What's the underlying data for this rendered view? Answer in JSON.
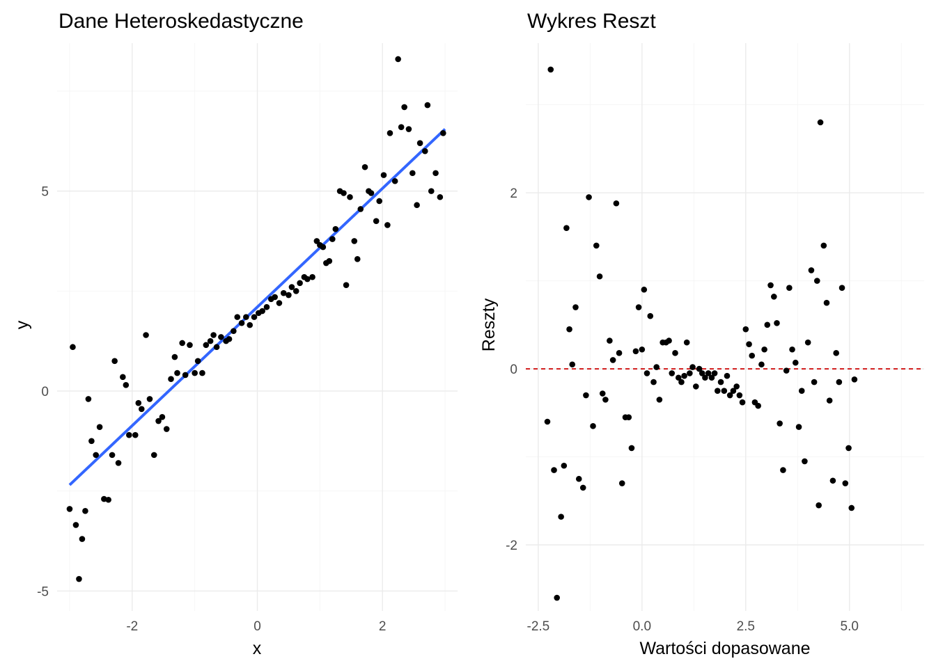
{
  "chart_data": [
    {
      "type": "scatter",
      "title": "Dane Heteroskedastyczne",
      "xlabel": "x",
      "ylabel": "y",
      "xlim": [
        -3.2,
        3.2
      ],
      "ylim": [
        -5.5,
        8.7
      ],
      "xticks": [
        -2,
        0,
        2
      ],
      "yticks": [
        -5,
        0,
        5
      ],
      "xtick_labels": [
        "-2",
        "0",
        "2"
      ],
      "ytick_labels": [
        "-5",
        "0",
        "5"
      ],
      "grid": true,
      "colors": {
        "points": "#000000",
        "fit_line": "#3366ff"
      },
      "fit_line": {
        "x": [
          -3.0,
          3.0
        ],
        "y": [
          -2.35,
          6.55
        ]
      },
      "points": [
        [
          -3.0,
          -2.95
        ],
        [
          -2.95,
          1.1
        ],
        [
          -2.9,
          -3.35
        ],
        [
          -2.85,
          -4.7
        ],
        [
          -2.8,
          -3.7
        ],
        [
          -2.75,
          -3.0
        ],
        [
          -2.7,
          -0.2
        ],
        [
          -2.65,
          -1.25
        ],
        [
          -2.58,
          -1.6
        ],
        [
          -2.52,
          -0.9
        ],
        [
          -2.45,
          -2.7
        ],
        [
          -2.38,
          -2.72
        ],
        [
          -2.32,
          -1.6
        ],
        [
          -2.28,
          0.75
        ],
        [
          -2.22,
          -1.8
        ],
        [
          -2.15,
          0.35
        ],
        [
          -2.1,
          0.15
        ],
        [
          -2.05,
          -1.1
        ],
        [
          -1.95,
          -1.1
        ],
        [
          -1.9,
          -0.3
        ],
        [
          -1.85,
          -0.45
        ],
        [
          -1.78,
          1.4
        ],
        [
          -1.72,
          -0.2
        ],
        [
          -1.65,
          -1.6
        ],
        [
          -1.58,
          -0.75
        ],
        [
          -1.52,
          -0.65
        ],
        [
          -1.45,
          -0.95
        ],
        [
          -1.38,
          0.3
        ],
        [
          -1.32,
          0.85
        ],
        [
          -1.28,
          0.45
        ],
        [
          -1.2,
          1.2
        ],
        [
          -1.15,
          0.4
        ],
        [
          -1.08,
          1.15
        ],
        [
          -1.0,
          0.45
        ],
        [
          -0.95,
          0.75
        ],
        [
          -0.88,
          0.45
        ],
        [
          -0.82,
          1.15
        ],
        [
          -0.75,
          1.25
        ],
        [
          -0.7,
          1.4
        ],
        [
          -0.65,
          1.1
        ],
        [
          -0.58,
          1.35
        ],
        [
          -0.5,
          1.25
        ],
        [
          -0.45,
          1.3
        ],
        [
          -0.38,
          1.5
        ],
        [
          -0.32,
          1.85
        ],
        [
          -0.25,
          1.7
        ],
        [
          -0.18,
          1.85
        ],
        [
          -0.12,
          1.65
        ],
        [
          -0.05,
          1.85
        ],
        [
          0.02,
          1.95
        ],
        [
          0.08,
          2.0
        ],
        [
          0.15,
          2.1
        ],
        [
          0.22,
          2.3
        ],
        [
          0.28,
          2.35
        ],
        [
          0.35,
          2.2
        ],
        [
          0.42,
          2.45
        ],
        [
          0.5,
          2.4
        ],
        [
          0.55,
          2.6
        ],
        [
          0.62,
          2.5
        ],
        [
          0.68,
          2.7
        ],
        [
          0.75,
          2.85
        ],
        [
          0.8,
          2.8
        ],
        [
          0.88,
          2.85
        ],
        [
          0.95,
          3.75
        ],
        [
          1.0,
          3.65
        ],
        [
          1.05,
          3.6
        ],
        [
          1.1,
          3.2
        ],
        [
          1.15,
          3.25
        ],
        [
          1.2,
          3.8
        ],
        [
          1.25,
          4.05
        ],
        [
          1.32,
          5.0
        ],
        [
          1.38,
          4.95
        ],
        [
          1.42,
          2.65
        ],
        [
          1.48,
          4.85
        ],
        [
          1.55,
          3.75
        ],
        [
          1.6,
          3.3
        ],
        [
          1.65,
          4.55
        ],
        [
          1.72,
          5.6
        ],
        [
          1.78,
          5.0
        ],
        [
          1.82,
          4.95
        ],
        [
          1.9,
          4.25
        ],
        [
          1.95,
          4.75
        ],
        [
          2.02,
          5.4
        ],
        [
          2.08,
          4.15
        ],
        [
          2.12,
          6.45
        ],
        [
          2.2,
          5.25
        ],
        [
          2.25,
          8.3
        ],
        [
          2.3,
          6.6
        ],
        [
          2.35,
          7.1
        ],
        [
          2.42,
          6.55
        ],
        [
          2.48,
          5.45
        ],
        [
          2.55,
          4.65
        ],
        [
          2.6,
          6.2
        ],
        [
          2.68,
          6.0
        ],
        [
          2.72,
          7.15
        ],
        [
          2.78,
          5.0
        ],
        [
          2.85,
          5.45
        ],
        [
          2.92,
          4.85
        ],
        [
          2.97,
          6.45
        ]
      ]
    },
    {
      "type": "scatter",
      "title": "Wykres Reszt",
      "xlabel": "Wartości dopasowane",
      "ylabel": "Reszty",
      "xlim": [
        -2.8,
        6.8
      ],
      "ylim": [
        -2.75,
        3.7
      ],
      "xticks": [
        -2.5,
        0.0,
        2.5,
        5.0
      ],
      "yticks": [
        -2,
        0,
        2
      ],
      "xtick_labels": [
        "-2.5",
        "0.0",
        "2.5",
        "5.0"
      ],
      "ytick_labels": [
        "-2",
        "0",
        "2"
      ],
      "grid": true,
      "colors": {
        "points": "#000000",
        "reference_line": "#cc0000"
      },
      "reference_line": {
        "y": 0
      },
      "points": [
        [
          -2.28,
          -0.6
        ],
        [
          -2.2,
          3.4
        ],
        [
          -2.12,
          -1.15
        ],
        [
          -2.05,
          -2.6
        ],
        [
          -1.95,
          -1.68
        ],
        [
          -1.88,
          -1.1
        ],
        [
          -1.82,
          1.6
        ],
        [
          -1.75,
          0.45
        ],
        [
          -1.68,
          0.05
        ],
        [
          -1.6,
          0.7
        ],
        [
          -1.52,
          -1.25
        ],
        [
          -1.42,
          -1.35
        ],
        [
          -1.35,
          -0.3
        ],
        [
          -1.28,
          1.95
        ],
        [
          -1.18,
          -0.65
        ],
        [
          -1.1,
          1.4
        ],
        [
          -1.02,
          1.05
        ],
        [
          -0.95,
          -0.28
        ],
        [
          -0.88,
          -0.35
        ],
        [
          -0.78,
          0.32
        ],
        [
          -0.7,
          0.1
        ],
        [
          -0.62,
          1.88
        ],
        [
          -0.55,
          0.18
        ],
        [
          -0.48,
          -1.3
        ],
        [
          -0.4,
          -0.55
        ],
        [
          -0.32,
          -0.55
        ],
        [
          -0.25,
          -0.9
        ],
        [
          -0.15,
          0.2
        ],
        [
          -0.08,
          0.7
        ],
        [
          0.0,
          0.22
        ],
        [
          0.05,
          0.9
        ],
        [
          0.12,
          -0.05
        ],
        [
          0.2,
          0.6
        ],
        [
          0.28,
          -0.15
        ],
        [
          0.35,
          0.02
        ],
        [
          0.42,
          -0.35
        ],
        [
          0.5,
          0.3
        ],
        [
          0.58,
          0.3
        ],
        [
          0.65,
          0.32
        ],
        [
          0.72,
          -0.05
        ],
        [
          0.8,
          0.18
        ],
        [
          0.88,
          -0.1
        ],
        [
          0.95,
          -0.15
        ],
        [
          1.02,
          -0.08
        ],
        [
          1.08,
          0.3
        ],
        [
          1.15,
          -0.05
        ],
        [
          1.22,
          0.02
        ],
        [
          1.3,
          -0.2
        ],
        [
          1.38,
          0.0
        ],
        [
          1.45,
          -0.05
        ],
        [
          1.52,
          -0.1
        ],
        [
          1.6,
          -0.05
        ],
        [
          1.68,
          -0.1
        ],
        [
          1.75,
          -0.05
        ],
        [
          1.82,
          -0.25
        ],
        [
          1.9,
          -0.15
        ],
        [
          1.98,
          -0.25
        ],
        [
          2.05,
          -0.08
        ],
        [
          2.12,
          -0.3
        ],
        [
          2.2,
          -0.25
        ],
        [
          2.28,
          -0.2
        ],
        [
          2.35,
          -0.3
        ],
        [
          2.42,
          -0.38
        ],
        [
          2.5,
          0.45
        ],
        [
          2.58,
          0.28
        ],
        [
          2.65,
          0.15
        ],
        [
          2.72,
          -0.38
        ],
        [
          2.8,
          -0.42
        ],
        [
          2.88,
          0.05
        ],
        [
          2.95,
          0.22
        ],
        [
          3.02,
          0.5
        ],
        [
          3.1,
          0.95
        ],
        [
          3.18,
          0.82
        ],
        [
          3.25,
          0.52
        ],
        [
          3.32,
          -0.62
        ],
        [
          3.4,
          -1.15
        ],
        [
          3.48,
          -0.02
        ],
        [
          3.55,
          0.92
        ],
        [
          3.62,
          0.22
        ],
        [
          3.7,
          0.07
        ],
        [
          3.78,
          -0.66
        ],
        [
          3.85,
          -0.25
        ],
        [
          3.92,
          -1.05
        ],
        [
          4.0,
          0.3
        ],
        [
          4.08,
          1.12
        ],
        [
          4.15,
          -0.15
        ],
        [
          4.22,
          1.0
        ],
        [
          4.3,
          2.8
        ],
        [
          4.38,
          1.4
        ],
        [
          4.45,
          0.75
        ],
        [
          4.52,
          -0.36
        ],
        [
          4.6,
          -1.27
        ],
        [
          4.68,
          0.18
        ],
        [
          4.75,
          -0.15
        ],
        [
          4.82,
          0.92
        ],
        [
          4.9,
          -1.3
        ],
        [
          4.98,
          -0.9
        ],
        [
          5.05,
          -1.58
        ],
        [
          5.12,
          -0.12
        ],
        [
          4.26,
          -1.55
        ]
      ]
    }
  ]
}
